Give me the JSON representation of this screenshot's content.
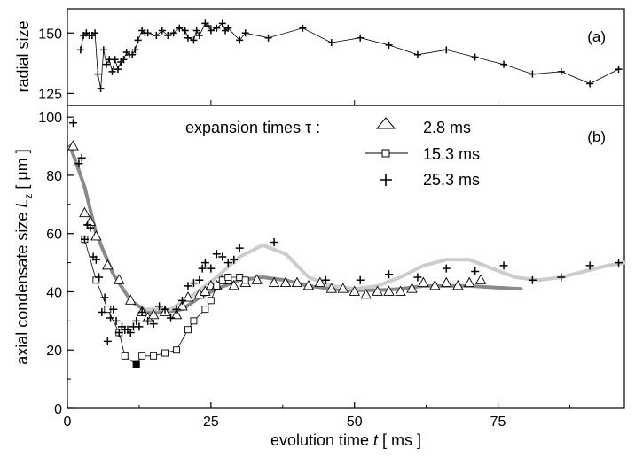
{
  "chart_data": [
    {
      "type": "line",
      "panel_label": "(a)",
      "ylabel": "radial size",
      "xlim": [
        0,
        97
      ],
      "ylim": [
        120,
        160
      ],
      "yticks": [
        125,
        150
      ],
      "ytick_labels": [
        "125",
        "150"
      ],
      "series": [
        {
          "marker": "plus",
          "line": "thin-black",
          "points": [
            [
              2.3,
              143
            ],
            [
              2.8,
              149
            ],
            [
              3.3,
              150
            ],
            [
              3.8,
              149
            ],
            [
              4.3,
              149
            ],
            [
              4.8,
              150
            ],
            [
              5.3,
              133
            ],
            [
              5.8,
              127
            ],
            [
              6.3,
              143
            ],
            [
              6.8,
              137
            ],
            [
              7.3,
              139
            ],
            [
              7.8,
              134
            ],
            [
              8.3,
              139
            ],
            [
              8.8,
              135
            ],
            [
              9.3,
              138
            ],
            [
              9.8,
              139
            ],
            [
              10.3,
              142
            ],
            [
              10.8,
              141
            ],
            [
              11.3,
              141
            ],
            [
              11.8,
              143
            ],
            [
              12.3,
              147
            ],
            [
              13,
              151
            ],
            [
              13.5,
              150
            ],
            [
              14,
              150
            ],
            [
              15.5,
              149
            ],
            [
              16.5,
              151
            ],
            [
              17.5,
              149
            ],
            [
              18.5,
              150
            ],
            [
              19.5,
              152
            ],
            [
              20.5,
              151
            ],
            [
              21,
              148
            ],
            [
              22,
              147
            ],
            [
              22.5,
              151
            ],
            [
              23,
              149
            ],
            [
              24,
              154
            ],
            [
              24.5,
              153
            ],
            [
              25,
              151
            ],
            [
              26,
              152
            ],
            [
              27,
              154
            ],
            [
              27.5,
              151
            ],
            [
              28,
              152
            ],
            [
              30,
              147
            ],
            [
              31,
              150
            ],
            [
              35,
              148
            ],
            [
              41,
              152
            ],
            [
              46,
              146
            ],
            [
              51,
              148
            ],
            [
              56,
              145
            ],
            [
              61,
              141
            ],
            [
              66,
              143
            ],
            [
              71,
              140
            ],
            [
              76,
              137
            ],
            [
              81,
              133
            ],
            [
              86,
              134
            ],
            [
              91,
              129
            ],
            [
              96,
              135
            ]
          ]
        }
      ]
    },
    {
      "type": "scatter",
      "panel_label": "(b)",
      "legend_title": "expansion times τ :",
      "xlabel_pre": "evolution time ",
      "xlabel_var": "t",
      "xlabel_post": " [ ms ]",
      "ylabel_pre": "axial condensate size ",
      "ylabel_var": "L",
      "ylabel_sub": "z",
      "ylabel_post": " [ μm ]",
      "xlim": [
        0,
        97
      ],
      "ylim": [
        0,
        104
      ],
      "xticks": [
        0,
        25,
        50,
        75
      ],
      "xtick_labels": [
        "0",
        "25",
        "50",
        "75"
      ],
      "yticks": [
        0,
        20,
        40,
        60,
        80,
        100
      ],
      "ytick_labels": [
        "0",
        "20",
        "40",
        "60",
        "80",
        "100"
      ],
      "series": [
        {
          "name": "2.8 ms",
          "marker": "triangle",
          "points": [
            [
              1,
              90
            ],
            [
              3,
              67
            ],
            [
              4,
              64
            ],
            [
              5,
              59
            ],
            [
              7,
              49
            ],
            [
              9,
              44
            ],
            [
              11,
              37
            ],
            [
              13,
              33
            ],
            [
              14,
              31
            ],
            [
              15,
              32
            ],
            [
              17,
              33
            ],
            [
              19,
              32
            ],
            [
              20,
              35
            ],
            [
              21,
              38
            ],
            [
              23,
              39
            ],
            [
              24,
              40
            ],
            [
              25,
              42
            ],
            [
              26,
              42
            ],
            [
              27,
              44
            ],
            [
              28,
              44
            ],
            [
              29,
              42
            ],
            [
              31,
              43
            ],
            [
              33,
              44
            ],
            [
              36,
              43
            ],
            [
              38,
              43
            ],
            [
              40,
              43
            ],
            [
              42,
              42
            ],
            [
              44,
              43
            ],
            [
              46,
              41
            ],
            [
              48,
              41
            ],
            [
              50,
              40
            ],
            [
              52,
              39
            ],
            [
              54,
              40
            ],
            [
              56,
              40
            ],
            [
              58,
              40
            ],
            [
              60,
              41
            ],
            [
              62,
              43
            ],
            [
              64,
              42
            ],
            [
              66,
              43
            ],
            [
              68,
              42
            ],
            [
              70,
              43
            ],
            [
              72,
              44
            ]
          ]
        },
        {
          "name": "15.3 ms",
          "marker": "square",
          "line": "thin-black",
          "points": [
            [
              3,
              58
            ],
            [
              5,
              44
            ],
            [
              7,
              34
            ],
            [
              9,
              26
            ],
            [
              10,
              18
            ],
            [
              12,
              15
            ],
            [
              13,
              18
            ],
            [
              15,
              18
            ],
            [
              17,
              19
            ],
            [
              19,
              20
            ],
            [
              21,
              27
            ],
            [
              22,
              30
            ],
            [
              24,
              34
            ],
            [
              25,
              37
            ],
            [
              26,
              42
            ],
            [
              27,
              44
            ],
            [
              28,
              45
            ],
            [
              30,
              45
            ],
            [
              31,
              44
            ]
          ]
        },
        {
          "name": "25.3 ms",
          "marker": "plus",
          "points": [
            [
              1,
              98
            ],
            [
              2,
              84
            ],
            [
              2.5,
              86
            ],
            [
              3,
              58
            ],
            [
              3.5,
              63
            ],
            [
              4,
              62
            ],
            [
              4.5,
              52
            ],
            [
              5,
              51
            ],
            [
              5.5,
              45
            ],
            [
              6,
              33
            ],
            [
              6.5,
              38
            ],
            [
              7,
              23
            ],
            [
              7.5,
              31
            ],
            [
              8,
              34
            ],
            [
              8.5,
              30
            ],
            [
              9,
              26
            ],
            [
              9.5,
              28
            ],
            [
              10,
              27
            ],
            [
              10.5,
              27
            ],
            [
              11,
              26
            ],
            [
              11.5,
              28
            ],
            [
              12,
              30
            ],
            [
              12.5,
              28
            ],
            [
              13,
              33
            ],
            [
              14,
              30
            ],
            [
              15,
              29
            ],
            [
              16,
              35
            ],
            [
              17,
              34
            ],
            [
              18,
              31
            ],
            [
              19,
              34
            ],
            [
              20,
              37
            ],
            [
              21,
              42
            ],
            [
              22,
              43
            ],
            [
              23,
              44
            ],
            [
              23.5,
              48
            ],
            [
              24,
              50
            ],
            [
              25,
              48
            ],
            [
              26,
              53
            ],
            [
              27,
              52
            ],
            [
              28,
              50
            ],
            [
              29,
              51
            ],
            [
              30,
              55
            ],
            [
              36,
              57
            ],
            [
              45,
              44
            ],
            [
              51,
              44
            ],
            [
              56,
              46
            ],
            [
              61,
              45
            ],
            [
              66,
              48
            ],
            [
              71,
              47
            ],
            [
              76,
              49
            ],
            [
              81,
              44
            ],
            [
              86,
              45
            ],
            [
              91,
              49
            ],
            [
              96,
              50
            ]
          ]
        },
        {
          "name": "filled-point",
          "marker": "filled-square",
          "points": [
            [
              12,
              15
            ]
          ]
        }
      ],
      "fits": [
        {
          "color": "#8a8a8a",
          "points": [
            [
              0.5,
              90
            ],
            [
              3,
              76
            ],
            [
              5,
              60
            ],
            [
              8,
              46
            ],
            [
              11,
              37
            ],
            [
              14,
              33
            ],
            [
              17,
              33
            ],
            [
              20,
              34
            ],
            [
              23,
              38
            ],
            [
              26,
              41
            ],
            [
              30,
              44
            ],
            [
              34,
              45
            ],
            [
              38,
              44
            ],
            [
              42,
              42
            ],
            [
              46,
              41
            ],
            [
              50,
              40.5
            ],
            [
              54,
              40.5
            ],
            [
              58,
              41
            ],
            [
              62,
              42
            ],
            [
              66,
              42
            ],
            [
              70,
              42
            ],
            [
              74,
              41.5
            ],
            [
              79,
              41
            ]
          ]
        },
        {
          "color": "#cccccc",
          "points": [
            [
              14,
              34
            ],
            [
              18,
              34
            ],
            [
              22,
              39
            ],
            [
              26,
              45
            ],
            [
              30,
              52
            ],
            [
              34,
              56
            ],
            [
              38,
              53
            ],
            [
              42,
              45
            ],
            [
              46,
              42
            ],
            [
              50,
              41
            ],
            [
              54,
              42
            ],
            [
              58,
              45
            ],
            [
              62,
              49
            ],
            [
              66,
              51
            ],
            [
              70,
              51
            ],
            [
              74,
              48
            ],
            [
              78,
              45
            ],
            [
              82,
              44
            ],
            [
              86,
              45
            ],
            [
              90,
              47
            ],
            [
              94,
              49
            ],
            [
              97,
              50
            ]
          ]
        }
      ]
    }
  ]
}
